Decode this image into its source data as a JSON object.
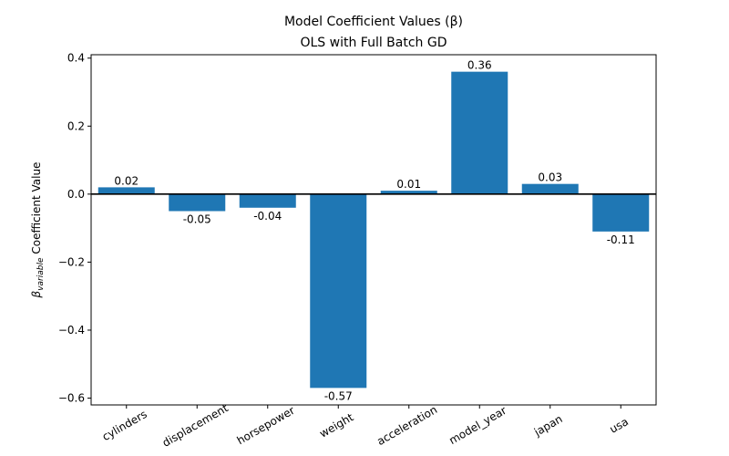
{
  "chart_data": {
    "type": "bar",
    "title": "Model Coefficient Values (β)",
    "subtitle": "OLS with Full Batch GD",
    "xlabel": "",
    "ylabel": {
      "symbol": "β",
      "subscript": "variable",
      "suffix": " Coefficient Value"
    },
    "categories": [
      "cylinders",
      "displacement",
      "horsepower",
      "weight",
      "acceleration",
      "model_year",
      "japan",
      "usa"
    ],
    "values": [
      0.02,
      -0.05,
      -0.04,
      -0.57,
      0.01,
      0.36,
      0.03,
      -0.11
    ],
    "value_labels": [
      "0.02",
      "-0.05",
      "-0.04",
      "-0.57",
      "0.01",
      "0.36",
      "0.03",
      "-0.11"
    ],
    "ylim": [
      -0.62,
      0.41
    ],
    "yticks": [
      -0.6,
      -0.4,
      -0.2,
      0.0,
      0.2,
      0.4
    ],
    "ytick_labels": [
      "−0.6",
      "−0.4",
      "−0.2",
      "0.0",
      "0.2",
      "0.4"
    ],
    "grid": false,
    "zero_line": true,
    "bar_color": "#1f77b4"
  }
}
